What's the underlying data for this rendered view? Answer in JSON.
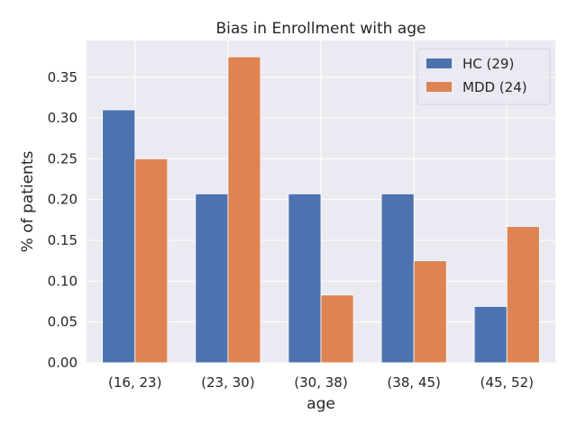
{
  "chart_data": {
    "type": "bar",
    "title": "Bias in Enrollment with age",
    "xlabel": "age",
    "ylabel": "% of patients",
    "categories": [
      "(16, 23)",
      "(23, 30)",
      "(30, 38)",
      "(38, 45)",
      "(45, 52)"
    ],
    "series": [
      {
        "name": "HC (29)",
        "color": "#4c72b0",
        "values": [
          0.31,
          0.207,
          0.207,
          0.207,
          0.069
        ]
      },
      {
        "name": "MDD (24)",
        "color": "#dd8452",
        "values": [
          0.25,
          0.375,
          0.083,
          0.125,
          0.167
        ]
      }
    ],
    "ylim": [
      0,
      0.395
    ],
    "yticks": [
      "0.00",
      "0.05",
      "0.10",
      "0.15",
      "0.20",
      "0.25",
      "0.30",
      "0.35"
    ],
    "grid": true,
    "legend_position": "top-right",
    "background_color": "#eaeaf2",
    "grid_color": "#ffffff"
  }
}
